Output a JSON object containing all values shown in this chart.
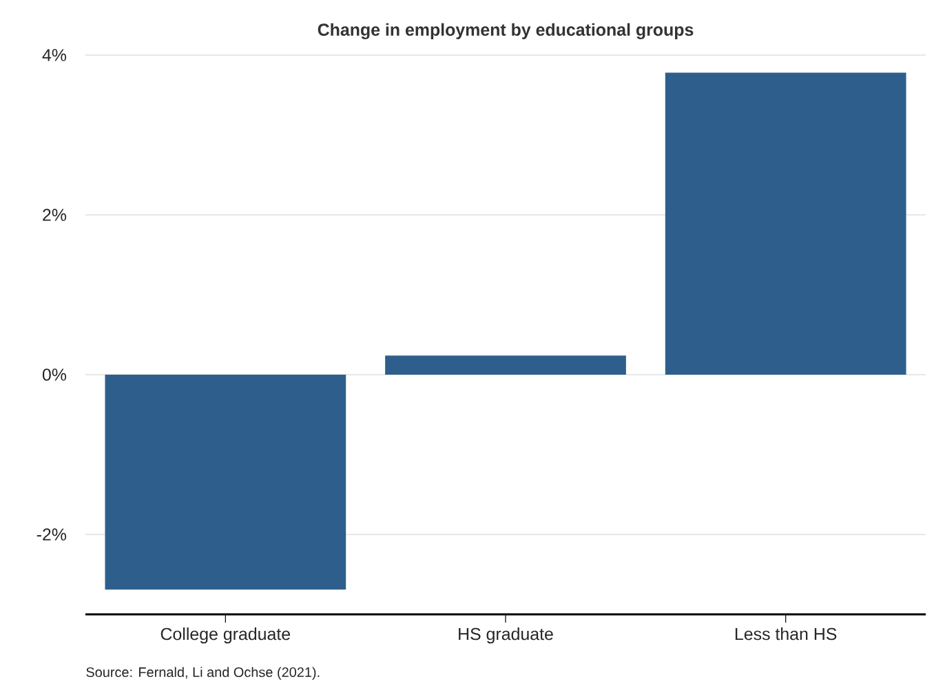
{
  "chart_data": {
    "type": "bar",
    "title": "Change in employment by educational groups",
    "categories": [
      "College graduate",
      "HS graduate",
      "Less than HS"
    ],
    "values": [
      -2.69,
      0.24,
      3.78
    ],
    "color": "#2e5f8c",
    "ylim": [
      -3,
      4
    ],
    "yticks": [
      {
        "value": -2,
        "label": "-2%"
      },
      {
        "value": 0,
        "label": "0%"
      },
      {
        "value": 2,
        "label": "2%"
      },
      {
        "value": 4,
        "label": "4%"
      }
    ],
    "grid": "y",
    "annotations": [
      "Source: Fernald, Li and Ochse (2021)."
    ]
  }
}
